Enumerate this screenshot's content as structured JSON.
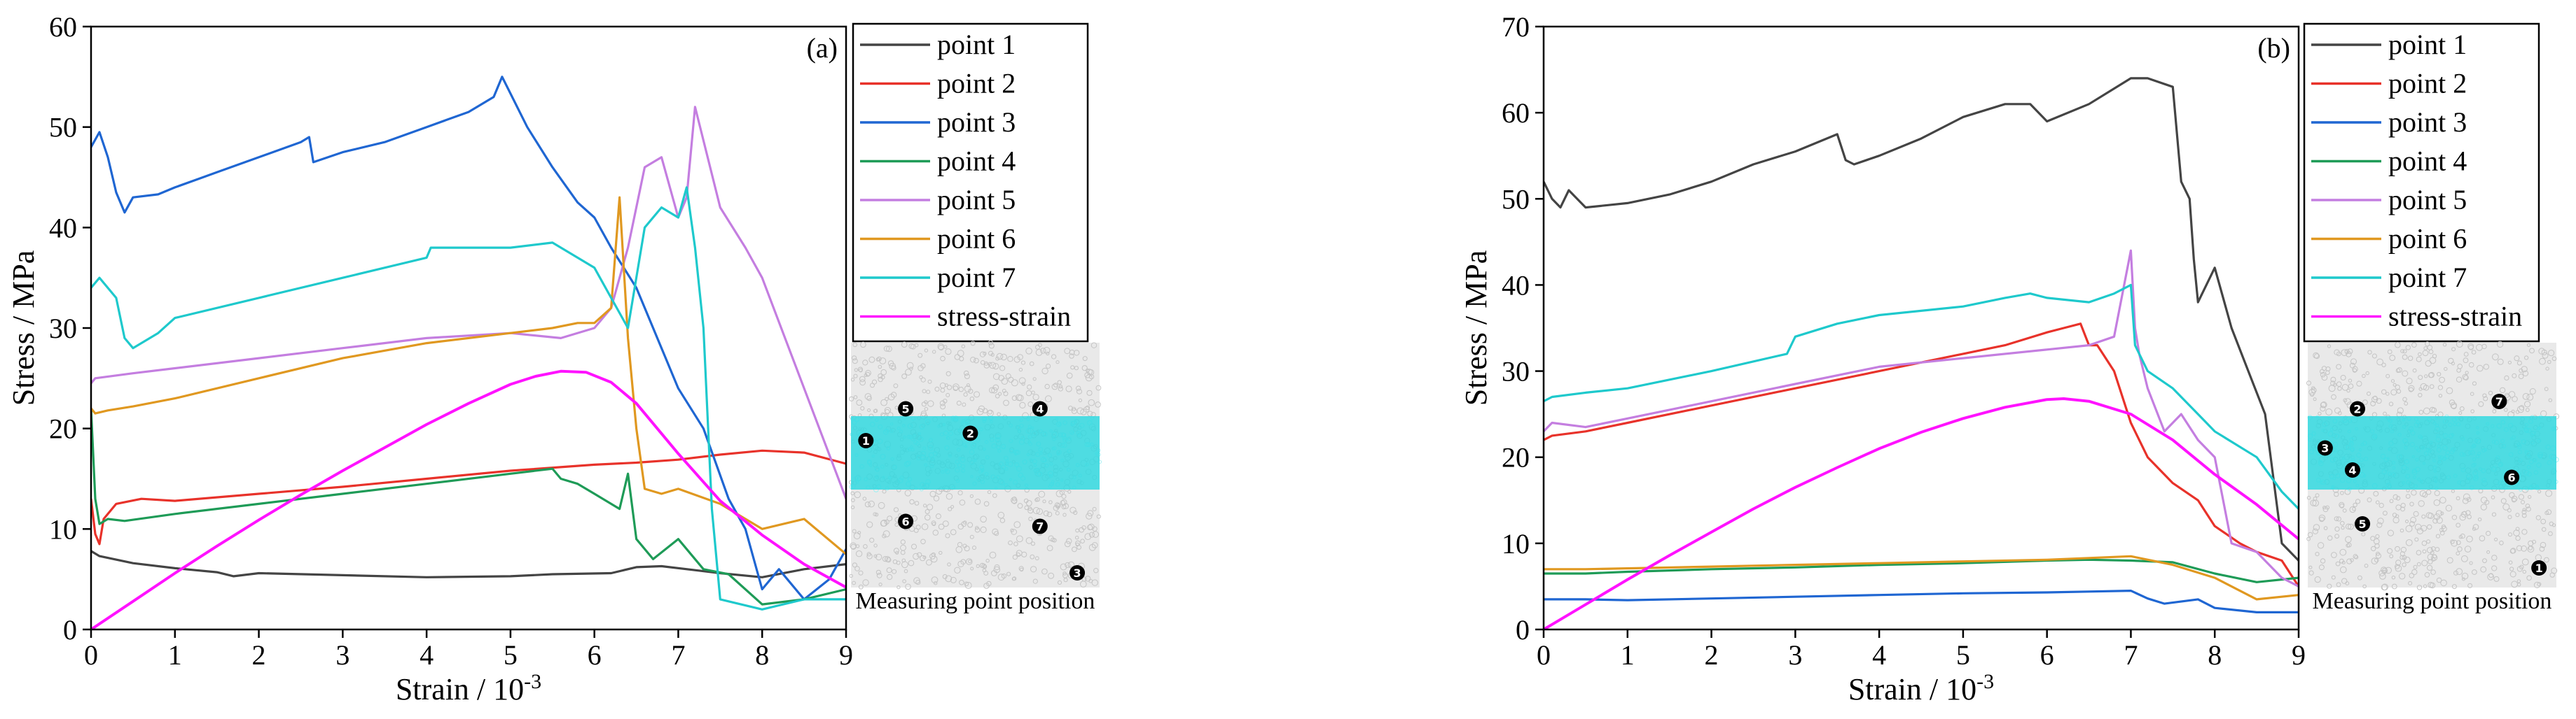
{
  "chart_data": [
    {
      "type": "line",
      "panel_label": "(a)",
      "xlabel_prefix": "Strain / 10",
      "xlabel_exp": "-3",
      "ylabel": "Stress / MPa",
      "xlim": [
        0,
        9
      ],
      "ylim": [
        0,
        60
      ],
      "xticks": [
        "0",
        "1",
        "2",
        "3",
        "4",
        "5",
        "6",
        "7",
        "8",
        "9"
      ],
      "yticks": [
        "0",
        "10",
        "20",
        "30",
        "40",
        "50",
        "60"
      ],
      "series": [
        {
          "name": "point 1",
          "color": "#444444",
          "x": [
            0,
            0.1,
            0.5,
            1,
            1.5,
            1.7,
            2,
            3,
            4,
            5,
            5.5,
            6.2,
            6.5,
            6.8,
            7.2,
            7.5,
            8,
            8.5,
            9
          ],
          "y": [
            7.8,
            7.3,
            6.6,
            6.1,
            5.7,
            5.3,
            5.6,
            5.4,
            5.2,
            5.3,
            5.5,
            5.6,
            6.2,
            6.3,
            5.9,
            5.6,
            5.2,
            6.0,
            6.5
          ]
        },
        {
          "name": "point 2",
          "color": "#e8322a",
          "x": [
            0,
            0.05,
            0.1,
            0.15,
            0.3,
            0.6,
            1,
            2,
            3,
            4,
            5,
            6,
            6.5,
            7,
            7.5,
            8,
            8.5,
            9
          ],
          "y": [
            13,
            9.5,
            8.5,
            11,
            12.5,
            13,
            12.8,
            13.5,
            14.2,
            15,
            15.8,
            16.4,
            16.6,
            16.9,
            17.4,
            17.8,
            17.6,
            16.5
          ]
        },
        {
          "name": "point 3",
          "color": "#1f66d2",
          "x": [
            0,
            0.1,
            0.2,
            0.3,
            0.4,
            0.5,
            0.8,
            1,
            1.5,
            2,
            2.5,
            2.6,
            2.65,
            3,
            3.5,
            4,
            4.5,
            4.8,
            4.9,
            5.2,
            5.5,
            5.8,
            6,
            6.2,
            6.5,
            6.8,
            7,
            7.3,
            7.6,
            7.8,
            8,
            8.2,
            8.5,
            8.8,
            9
          ],
          "y": [
            48,
            49.5,
            47,
            43.5,
            41.5,
            43,
            43.3,
            44,
            45.5,
            47,
            48.5,
            49,
            46.5,
            47.5,
            48.5,
            50,
            51.5,
            53,
            55,
            50,
            46,
            42.5,
            41,
            38,
            34,
            28,
            24,
            20,
            13,
            10,
            4,
            6,
            3,
            5,
            8
          ]
        },
        {
          "name": "point 4",
          "color": "#1e9b57",
          "x": [
            0,
            0.05,
            0.1,
            0.2,
            0.4,
            1,
            2,
            3,
            4,
            5,
            5.5,
            5.6,
            5.8,
            6,
            6.3,
            6.4,
            6.5,
            6.7,
            7,
            7.3,
            7.6,
            8,
            8.5,
            9
          ],
          "y": [
            22,
            13,
            10.5,
            11,
            10.8,
            11.5,
            12.5,
            13.5,
            14.5,
            15.5,
            16,
            15,
            14.5,
            13.5,
            12,
            15.5,
            9,
            7,
            9,
            6,
            5.5,
            2.5,
            3,
            4
          ]
        },
        {
          "name": "point 5",
          "color": "#c47ee0",
          "x": [
            0,
            0.05,
            0.5,
            1,
            2,
            3,
            4,
            5,
            5.6,
            6,
            6.2,
            6.4,
            6.6,
            6.8,
            7,
            7.1,
            7.2,
            7.5,
            7.8,
            8,
            8.5,
            9
          ],
          "y": [
            24.5,
            25,
            25.5,
            26,
            27,
            28,
            29,
            29.5,
            29,
            30,
            32,
            38,
            46,
            47,
            41,
            43,
            52,
            42,
            38,
            35,
            24,
            13
          ]
        },
        {
          "name": "point 6",
          "color": "#e09820",
          "x": [
            0,
            0.05,
            0.2,
            0.5,
            1,
            2,
            3,
            4,
            5,
            5.5,
            5.8,
            6,
            6.2,
            6.3,
            6.4,
            6.5,
            6.6,
            6.8,
            7,
            7.5,
            8,
            8.5,
            9
          ],
          "y": [
            22,
            21.5,
            21.8,
            22.2,
            23,
            25,
            27,
            28.5,
            29.5,
            30,
            30.5,
            30.5,
            32,
            43,
            29,
            20,
            14,
            13.5,
            14,
            12.5,
            10,
            11,
            7.5
          ]
        },
        {
          "name": "point 7",
          "color": "#1ec9cc",
          "x": [
            0,
            0.1,
            0.3,
            0.4,
            0.5,
            0.8,
            1,
            2,
            3,
            4,
            4.05,
            5,
            5.5,
            5.8,
            6,
            6.2,
            6.4,
            6.6,
            6.8,
            7,
            7.1,
            7.2,
            7.3,
            7.4,
            7.5,
            8,
            8.5,
            9
          ],
          "y": [
            34,
            35,
            33,
            29,
            28,
            29.5,
            31,
            33,
            35,
            37,
            38,
            38,
            38.5,
            37,
            36,
            33,
            30,
            40,
            42,
            41,
            44,
            38,
            30,
            12,
            3,
            2,
            3,
            3
          ]
        },
        {
          "name": "stress-strain",
          "color": "#ff12ff",
          "x": [
            0,
            0.5,
            1,
            1.5,
            2,
            2.5,
            3,
            3.5,
            4,
            4.5,
            5,
            5.3,
            5.6,
            5.9,
            6.2,
            6.5,
            7,
            7.5,
            8,
            8.5,
            9
          ],
          "y": [
            0,
            2.8,
            5.6,
            8.3,
            10.9,
            13.4,
            15.8,
            18.1,
            20.4,
            22.5,
            24.4,
            25.2,
            25.7,
            25.6,
            24.6,
            22.5,
            17.5,
            12.8,
            9.4,
            6.5,
            4.2
          ]
        }
      ],
      "inset": {
        "caption": "Measuring point position",
        "points": [
          {
            "label": "1",
            "gx": 0.06,
            "gy": 0.4
          },
          {
            "label": "2",
            "gx": 0.48,
            "gy": 0.37
          },
          {
            "label": "3",
            "gx": 0.91,
            "gy": 0.94
          },
          {
            "label": "4",
            "gx": 0.76,
            "gy": 0.27
          },
          {
            "label": "5",
            "gx": 0.22,
            "gy": 0.27
          },
          {
            "label": "6",
            "gx": 0.22,
            "gy": 0.73
          },
          {
            "label": "7",
            "gx": 0.76,
            "gy": 0.75
          }
        ]
      }
    },
    {
      "type": "line",
      "panel_label": "(b)",
      "xlabel_prefix": "Strain / 10",
      "xlabel_exp": "-3",
      "ylabel": "Stress / MPa",
      "xlim": [
        0,
        9
      ],
      "ylim": [
        0,
        70
      ],
      "xticks": [
        "0",
        "1",
        "2",
        "3",
        "4",
        "5",
        "6",
        "7",
        "8",
        "9"
      ],
      "yticks": [
        "0",
        "10",
        "20",
        "30",
        "40",
        "50",
        "60",
        "70"
      ],
      "series": [
        {
          "name": "point 1",
          "color": "#444444",
          "x": [
            0,
            0.1,
            0.2,
            0.3,
            0.5,
            1,
            1.5,
            2,
            2.5,
            3,
            3.5,
            3.6,
            3.7,
            4,
            4.5,
            5,
            5.5,
            5.8,
            6,
            6.5,
            7,
            7.2,
            7.5,
            7.6,
            7.7,
            7.75,
            7.8,
            8,
            8.2,
            8.4,
            8.6,
            8.8,
            9
          ],
          "y": [
            52,
            50,
            49,
            51,
            49,
            49.5,
            50.5,
            52,
            54,
            55.5,
            57.5,
            54.5,
            54,
            55,
            57,
            59.5,
            61,
            61,
            59,
            61,
            64,
            64,
            63,
            52,
            50,
            43,
            38,
            42,
            35,
            30,
            25,
            10,
            8
          ]
        },
        {
          "name": "point 2",
          "color": "#e8322a",
          "x": [
            0,
            0.1,
            0.5,
            1,
            2,
            3,
            4,
            5,
            5.5,
            6,
            6.2,
            6.4,
            6.5,
            6.6,
            6.8,
            7,
            7.2,
            7.5,
            7.8,
            8,
            8.3,
            8.5,
            8.8,
            9
          ],
          "y": [
            22,
            22.5,
            23,
            24,
            26,
            28,
            30,
            32,
            33,
            34.5,
            35,
            35.5,
            33,
            33,
            30,
            24,
            20,
            17,
            15,
            12,
            10,
            9,
            8,
            5
          ]
        },
        {
          "name": "point 3",
          "color": "#1f66d2",
          "x": [
            0,
            0.5,
            1,
            2,
            3,
            4,
            5,
            6,
            6.5,
            7,
            7.2,
            7.4,
            7.8,
            8,
            8.5,
            9
          ],
          "y": [
            3.5,
            3.5,
            3.4,
            3.6,
            3.8,
            4,
            4.2,
            4.3,
            4.4,
            4.5,
            3.6,
            3,
            3.5,
            2.5,
            2,
            2
          ]
        },
        {
          "name": "point 4",
          "color": "#1e9b57",
          "x": [
            0,
            0.5,
            1,
            2,
            3,
            4,
            5,
            6,
            6.5,
            7,
            7.5,
            8,
            8.5,
            9
          ],
          "y": [
            6.5,
            6.5,
            6.7,
            7,
            7.2,
            7.5,
            7.7,
            8,
            8.1,
            8,
            7.8,
            6.5,
            5.5,
            6
          ]
        },
        {
          "name": "point 5",
          "color": "#c47ee0",
          "x": [
            0,
            0.1,
            0.5,
            1,
            2,
            3,
            4,
            5,
            6,
            6.5,
            6.8,
            7,
            7.05,
            7.1,
            7.2,
            7.4,
            7.6,
            7.8,
            8,
            8.2,
            8.5,
            8.8,
            9
          ],
          "y": [
            23,
            24,
            23.5,
            24.5,
            26.5,
            28.5,
            30.5,
            31.5,
            32.5,
            33,
            34,
            44,
            35,
            32,
            28,
            23,
            25,
            22,
            20,
            10,
            9,
            6,
            5
          ]
        },
        {
          "name": "point 6",
          "color": "#e09820",
          "x": [
            0,
            0.5,
            1,
            2,
            3,
            4,
            5,
            6,
            6.5,
            7,
            7.5,
            8,
            8.5,
            9
          ],
          "y": [
            7,
            7,
            7.1,
            7.3,
            7.5,
            7.7,
            7.9,
            8.1,
            8.3,
            8.5,
            7.5,
            6,
            3.5,
            4
          ]
        },
        {
          "name": "point 7",
          "color": "#1ec9cc",
          "x": [
            0,
            0.1,
            0.5,
            1,
            2,
            2.9,
            3,
            3.5,
            4,
            5,
            5.5,
            5.8,
            6,
            6.5,
            6.8,
            7,
            7.05,
            7.2,
            7.5,
            7.8,
            8,
            8.5,
            8.8,
            9
          ],
          "y": [
            26.5,
            27,
            27.5,
            28,
            30,
            32,
            34,
            35.5,
            36.5,
            37.5,
            38.5,
            39,
            38.5,
            38,
            39,
            40,
            33,
            30,
            28,
            25,
            23,
            20,
            16,
            14
          ]
        },
        {
          "name": "stress-strain",
          "color": "#ff12ff",
          "x": [
            0,
            0.5,
            1,
            1.5,
            2,
            2.5,
            3,
            3.5,
            4,
            4.5,
            5,
            5.5,
            6,
            6.2,
            6.5,
            7,
            7.5,
            8,
            8.5,
            9
          ],
          "y": [
            0,
            2.9,
            5.8,
            8.6,
            11.3,
            14,
            16.5,
            18.8,
            21,
            22.9,
            24.5,
            25.8,
            26.7,
            26.8,
            26.5,
            25,
            22,
            18,
            14.5,
            10.5
          ]
        }
      ],
      "inset": {
        "caption": "Measuring point position",
        "points": [
          {
            "label": "1",
            "gx": 0.93,
            "gy": 0.92
          },
          {
            "label": "2",
            "gx": 0.2,
            "gy": 0.27
          },
          {
            "label": "3",
            "gx": 0.07,
            "gy": 0.43
          },
          {
            "label": "4",
            "gx": 0.18,
            "gy": 0.52
          },
          {
            "label": "5",
            "gx": 0.22,
            "gy": 0.74
          },
          {
            "label": "6",
            "gx": 0.82,
            "gy": 0.55
          },
          {
            "label": "7",
            "gx": 0.77,
            "gy": 0.24
          }
        ]
      }
    }
  ]
}
